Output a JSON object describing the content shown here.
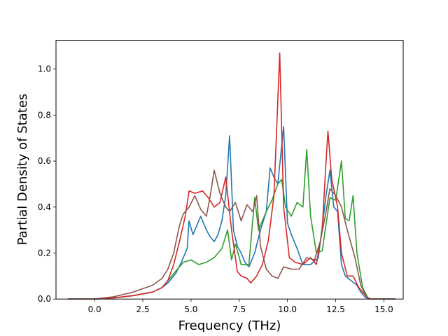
{
  "chart_data": {
    "type": "line",
    "title": "",
    "xlabel": "Frequency (THz)",
    "ylabel": "Partial Density of States",
    "xlim": [
      -2.0,
      16.0
    ],
    "ylim": [
      0.0,
      1.125
    ],
    "xticks": [
      0.0,
      2.5,
      5.0,
      7.5,
      10.0,
      12.5,
      15.0
    ],
    "xtick_labels": [
      "0.0",
      "2.5",
      "5.0",
      "7.5",
      "10.0",
      "12.5",
      "15.0"
    ],
    "yticks": [
      0.0,
      0.2,
      0.4,
      0.6,
      0.8,
      1.0
    ],
    "ytick_labels": [
      "0.0",
      "0.2",
      "0.4",
      "0.6",
      "0.8",
      "1.0"
    ],
    "grid": false,
    "series": [
      {
        "color": "#1f77b4",
        "points": [
          [
            -1.4,
            0
          ],
          [
            0,
            0
          ],
          [
            1,
            0.005
          ],
          [
            2,
            0.015
          ],
          [
            3,
            0.03
          ],
          [
            3.5,
            0.05
          ],
          [
            3.8,
            0.07
          ],
          [
            4.2,
            0.11
          ],
          [
            4.5,
            0.16
          ],
          [
            4.8,
            0.22
          ],
          [
            4.9,
            0.34
          ],
          [
            5.1,
            0.28
          ],
          [
            5.3,
            0.32
          ],
          [
            5.5,
            0.36
          ],
          [
            5.8,
            0.3
          ],
          [
            6.0,
            0.27
          ],
          [
            6.2,
            0.25
          ],
          [
            6.4,
            0.28
          ],
          [
            6.6,
            0.34
          ],
          [
            6.8,
            0.45
          ],
          [
            7.0,
            0.71
          ],
          [
            7.2,
            0.3
          ],
          [
            7.4,
            0.23
          ],
          [
            7.6,
            0.2
          ],
          [
            7.8,
            0.16
          ],
          [
            8.0,
            0.14
          ],
          [
            8.3,
            0.2
          ],
          [
            8.6,
            0.3
          ],
          [
            8.9,
            0.38
          ],
          [
            9.1,
            0.57
          ],
          [
            9.3,
            0.53
          ],
          [
            9.5,
            0.5
          ],
          [
            9.8,
            0.75
          ],
          [
            10.0,
            0.33
          ],
          [
            10.2,
            0.28
          ],
          [
            10.5,
            0.22
          ],
          [
            10.8,
            0.15
          ],
          [
            11.2,
            0.15
          ],
          [
            11.6,
            0.18
          ],
          [
            12.0,
            0.45
          ],
          [
            12.2,
            0.56
          ],
          [
            12.4,
            0.4
          ],
          [
            12.6,
            0.38
          ],
          [
            12.8,
            0.15
          ],
          [
            13.0,
            0.1
          ],
          [
            13.3,
            0.08
          ],
          [
            13.6,
            0.06
          ],
          [
            13.8,
            0.03
          ],
          [
            14.0,
            0.01
          ],
          [
            14.2,
            0
          ],
          [
            15.6,
            0
          ]
        ]
      },
      {
        "color": "#2ca02c",
        "points": [
          [
            -1.4,
            0
          ],
          [
            0,
            0
          ],
          [
            1,
            0.005
          ],
          [
            2,
            0.015
          ],
          [
            3,
            0.03
          ],
          [
            3.5,
            0.05
          ],
          [
            3.8,
            0.08
          ],
          [
            4.2,
            0.12
          ],
          [
            4.6,
            0.16
          ],
          [
            5.0,
            0.17
          ],
          [
            5.4,
            0.15
          ],
          [
            5.8,
            0.16
          ],
          [
            6.2,
            0.18
          ],
          [
            6.6,
            0.22
          ],
          [
            6.9,
            0.3
          ],
          [
            7.1,
            0.17
          ],
          [
            7.3,
            0.24
          ],
          [
            7.6,
            0.15
          ],
          [
            8.0,
            0.15
          ],
          [
            8.3,
            0.44
          ],
          [
            8.5,
            0.3
          ],
          [
            8.7,
            0.34
          ],
          [
            8.9,
            0.38
          ],
          [
            9.2,
            0.43
          ],
          [
            9.5,
            0.5
          ],
          [
            9.7,
            0.52
          ],
          [
            9.9,
            0.4
          ],
          [
            10.2,
            0.36
          ],
          [
            10.5,
            0.42
          ],
          [
            10.8,
            0.4
          ],
          [
            11.0,
            0.65
          ],
          [
            11.2,
            0.36
          ],
          [
            11.5,
            0.2
          ],
          [
            11.8,
            0.21
          ],
          [
            12.2,
            0.44
          ],
          [
            12.5,
            0.43
          ],
          [
            12.8,
            0.6
          ],
          [
            13.0,
            0.35
          ],
          [
            13.2,
            0.34
          ],
          [
            13.4,
            0.45
          ],
          [
            13.6,
            0.2
          ],
          [
            13.9,
            0.05
          ],
          [
            14.2,
            0
          ],
          [
            15.6,
            0
          ]
        ]
      },
      {
        "color": "#d62728",
        "points": [
          [
            -1.4,
            0
          ],
          [
            0,
            0
          ],
          [
            1,
            0.005
          ],
          [
            2,
            0.015
          ],
          [
            3,
            0.03
          ],
          [
            3.5,
            0.05
          ],
          [
            3.8,
            0.08
          ],
          [
            4.1,
            0.15
          ],
          [
            4.4,
            0.25
          ],
          [
            4.7,
            0.36
          ],
          [
            4.9,
            0.47
          ],
          [
            5.2,
            0.46
          ],
          [
            5.6,
            0.47
          ],
          [
            5.9,
            0.44
          ],
          [
            6.2,
            0.4
          ],
          [
            6.5,
            0.42
          ],
          [
            6.8,
            0.53
          ],
          [
            7.1,
            0.3
          ],
          [
            7.4,
            0.12
          ],
          [
            7.6,
            0.1
          ],
          [
            7.9,
            0.09
          ],
          [
            8.1,
            0.07
          ],
          [
            8.4,
            0.1
          ],
          [
            8.7,
            0.15
          ],
          [
            9.0,
            0.25
          ],
          [
            9.3,
            0.45
          ],
          [
            9.6,
            1.07
          ],
          [
            9.8,
            0.4
          ],
          [
            10.1,
            0.18
          ],
          [
            10.4,
            0.16
          ],
          [
            10.8,
            0.15
          ],
          [
            11.2,
            0.18
          ],
          [
            11.5,
            0.15
          ],
          [
            11.8,
            0.3
          ],
          [
            12.0,
            0.6
          ],
          [
            12.1,
            0.73
          ],
          [
            12.3,
            0.52
          ],
          [
            12.6,
            0.4
          ],
          [
            12.8,
            0.2
          ],
          [
            13.1,
            0.1
          ],
          [
            13.4,
            0.1
          ],
          [
            13.7,
            0.05
          ],
          [
            14.0,
            0.02
          ],
          [
            14.2,
            0
          ],
          [
            15.6,
            0
          ]
        ]
      },
      {
        "color": "#8c564b",
        "points": [
          [
            -1.4,
            0
          ],
          [
            0,
            0
          ],
          [
            1,
            0.01
          ],
          [
            2,
            0.03
          ],
          [
            3,
            0.06
          ],
          [
            3.5,
            0.09
          ],
          [
            3.8,
            0.13
          ],
          [
            4.1,
            0.2
          ],
          [
            4.4,
            0.32
          ],
          [
            4.6,
            0.37
          ],
          [
            4.9,
            0.4
          ],
          [
            5.2,
            0.45
          ],
          [
            5.5,
            0.39
          ],
          [
            5.8,
            0.36
          ],
          [
            6.0,
            0.45
          ],
          [
            6.2,
            0.56
          ],
          [
            6.5,
            0.46
          ],
          [
            6.8,
            0.4
          ],
          [
            7.0,
            0.38
          ],
          [
            7.3,
            0.42
          ],
          [
            7.6,
            0.34
          ],
          [
            7.9,
            0.41
          ],
          [
            8.2,
            0.38
          ],
          [
            8.4,
            0.45
          ],
          [
            8.6,
            0.23
          ],
          [
            8.9,
            0.13
          ],
          [
            9.2,
            0.1
          ],
          [
            9.5,
            0.09
          ],
          [
            9.8,
            0.14
          ],
          [
            10.2,
            0.13
          ],
          [
            10.6,
            0.13
          ],
          [
            11.0,
            0.18
          ],
          [
            11.4,
            0.17
          ],
          [
            11.7,
            0.25
          ],
          [
            12.0,
            0.38
          ],
          [
            12.2,
            0.48
          ],
          [
            12.5,
            0.45
          ],
          [
            12.8,
            0.4
          ],
          [
            13.1,
            0.3
          ],
          [
            13.5,
            0.18
          ],
          [
            13.8,
            0.06
          ],
          [
            14.1,
            0.01
          ],
          [
            14.3,
            0
          ],
          [
            15.6,
            0
          ]
        ]
      }
    ]
  }
}
